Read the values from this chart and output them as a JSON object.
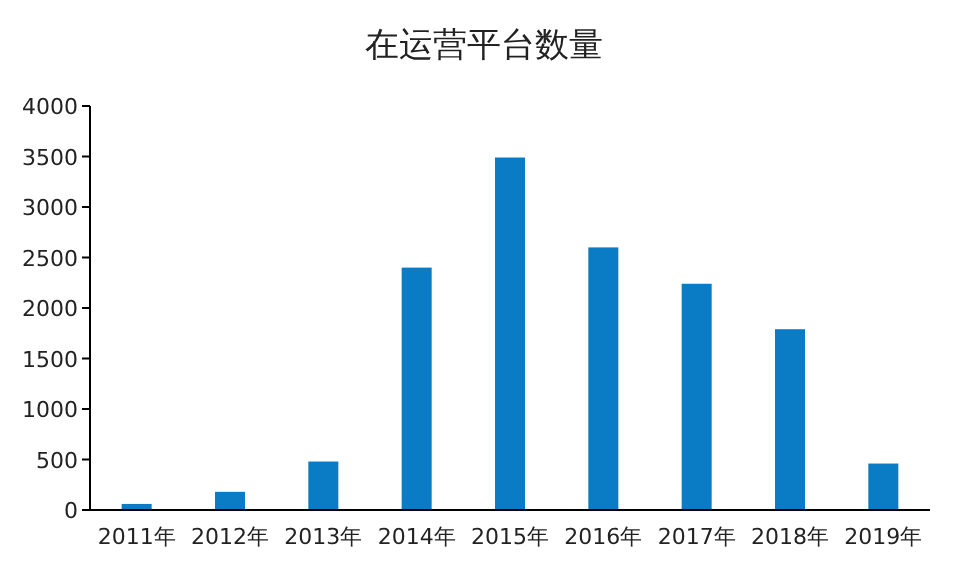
{
  "chart_data": {
    "type": "bar",
    "title": "在运营平台数量",
    "categories": [
      "2011年",
      "2012年",
      "2013年",
      "2014年",
      "2015年",
      "2016年",
      "2017年",
      "2018年",
      "2019年"
    ],
    "values": [
      60,
      180,
      480,
      2400,
      3490,
      2600,
      2240,
      1790,
      460
    ],
    "color": "#0a7cc6",
    "ylim": [
      0,
      4000
    ],
    "yticks": [
      0,
      500,
      1000,
      1500,
      2000,
      2500,
      3000,
      3500,
      4000
    ],
    "grid": false
  }
}
